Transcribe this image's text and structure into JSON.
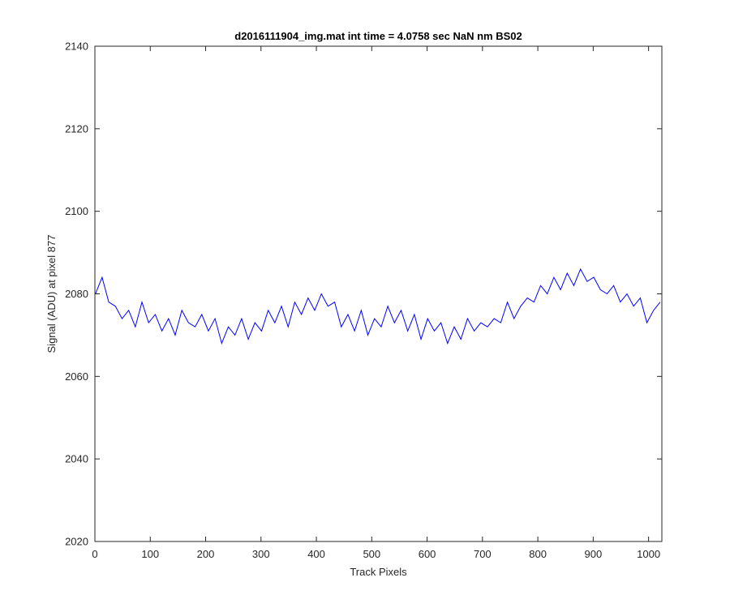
{
  "chart_data": {
    "type": "line",
    "title": "d2016111904_img.mat int time = 4.0758 sec  NaN nm BS02",
    "xlabel": "Track Pixels",
    "ylabel": "Signal (ADU) at pixel 877",
    "xlim": [
      0,
      1024
    ],
    "ylim": [
      2020,
      2140
    ],
    "xticks": [
      0,
      100,
      200,
      300,
      400,
      500,
      600,
      700,
      800,
      900,
      1000
    ],
    "yticks": [
      2020,
      2040,
      2060,
      2080,
      2100,
      2120,
      2140
    ],
    "grid": false,
    "legend": "none",
    "series": [
      {
        "color": "#0000ff",
        "x": [
          1,
          13,
          25,
          37,
          49,
          61,
          73,
          85,
          97,
          109,
          121,
          133,
          145,
          157,
          169,
          181,
          193,
          205,
          217,
          229,
          241,
          253,
          265,
          277,
          289,
          301,
          313,
          325,
          337,
          349,
          361,
          373,
          385,
          397,
          409,
          421,
          433,
          445,
          457,
          469,
          481,
          493,
          505,
          517,
          529,
          541,
          553,
          565,
          577,
          589,
          601,
          613,
          625,
          637,
          649,
          661,
          673,
          685,
          697,
          709,
          721,
          733,
          745,
          757,
          769,
          781,
          793,
          805,
          817,
          829,
          841,
          853,
          865,
          877,
          889,
          901,
          913,
          925,
          937,
          949,
          961,
          973,
          985,
          997,
          1009,
          1021
        ],
        "y": [
          2080,
          2084,
          2078,
          2077,
          2074,
          2076,
          2072,
          2078,
          2073,
          2075,
          2071,
          2074,
          2070,
          2076,
          2073,
          2072,
          2075,
          2071,
          2074,
          2068,
          2072,
          2070,
          2074,
          2069,
          2073,
          2071,
          2076,
          2073,
          2077,
          2072,
          2078,
          2075,
          2079,
          2076,
          2080,
          2077,
          2078,
          2072,
          2075,
          2071,
          2076,
          2070,
          2074,
          2072,
          2077,
          2073,
          2076,
          2071,
          2075,
          2069,
          2074,
          2071,
          2073,
          2068,
          2072,
          2069,
          2074,
          2071,
          2073,
          2072,
          2074,
          2073,
          2078,
          2074,
          2077,
          2079,
          2078,
          2082,
          2080,
          2084,
          2081,
          2085,
          2082,
          2086,
          2083,
          2084,
          2081,
          2080,
          2082,
          2078,
          2080,
          2077,
          2079,
          2073,
          2076,
          2078
        ]
      }
    ]
  }
}
